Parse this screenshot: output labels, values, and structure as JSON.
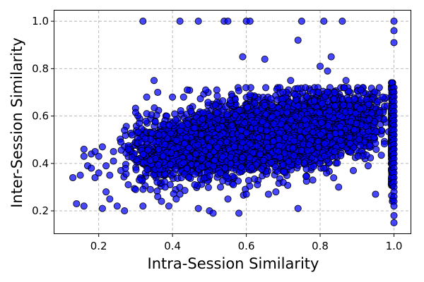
{
  "chart_data": {
    "type": "scatter",
    "xlabel": "Intra-Session Similarity",
    "ylabel": "Inter-Session Similarity",
    "xlim": [
      0.08,
      1.045
    ],
    "ylim": [
      0.105,
      1.045
    ],
    "xticks": [
      0.2,
      0.4,
      0.6,
      0.8,
      1.0
    ],
    "yticks": [
      0.2,
      0.4,
      0.6,
      0.8,
      1.0
    ],
    "xtick_labels": [
      "0.2",
      "0.4",
      "0.6",
      "0.8",
      "1.0"
    ],
    "ytick_labels": [
      "0.2",
      "0.4",
      "0.6",
      "0.8",
      "1.0"
    ],
    "grid": true,
    "marker_color": "#0000ff",
    "marker_edge_color": "#000000",
    "series": [
      {
        "points": [
          [
            0.13,
            0.34
          ],
          [
            0.14,
            0.23
          ],
          [
            0.15,
            0.35
          ],
          [
            0.16,
            0.46
          ],
          [
            0.16,
            0.43
          ],
          [
            0.16,
            0.22
          ],
          [
            0.17,
            0.39
          ],
          [
            0.18,
            0.44
          ],
          [
            0.18,
            0.38
          ],
          [
            0.19,
            0.45
          ],
          [
            0.19,
            0.34
          ],
          [
            0.2,
            0.43
          ],
          [
            0.2,
            0.36
          ],
          [
            0.21,
            0.21
          ],
          [
            0.21,
            0.47
          ],
          [
            0.22,
            0.39
          ],
          [
            0.22,
            0.28
          ],
          [
            0.23,
            0.25
          ],
          [
            0.23,
            0.35
          ],
          [
            0.24,
            0.41
          ],
          [
            0.24,
            0.45
          ],
          [
            0.25,
            0.22
          ],
          [
            0.26,
            0.49
          ],
          [
            0.26,
            0.37
          ],
          [
            0.27,
            0.2
          ],
          [
            0.27,
            0.54
          ],
          [
            0.28,
            0.31
          ],
          [
            0.28,
            0.46
          ],
          [
            0.29,
            0.52
          ],
          [
            0.3,
            0.29
          ],
          [
            0.31,
            0.57
          ],
          [
            0.31,
            0.33
          ],
          [
            0.32,
            0.22
          ],
          [
            0.33,
            0.61
          ],
          [
            0.33,
            0.68
          ],
          [
            0.34,
            0.29
          ],
          [
            0.35,
            0.75
          ],
          [
            0.36,
            0.7
          ],
          [
            0.36,
            0.26
          ],
          [
            0.37,
            0.24
          ],
          [
            0.38,
            0.3
          ],
          [
            0.39,
            0.22
          ],
          [
            0.4,
            0.68
          ],
          [
            0.41,
            0.25
          ],
          [
            0.42,
            0.27
          ],
          [
            0.43,
            0.68
          ],
          [
            0.44,
            0.71
          ],
          [
            0.45,
            0.62
          ],
          [
            0.46,
            0.31
          ],
          [
            0.47,
            0.21
          ],
          [
            0.49,
            0.71
          ],
          [
            0.5,
            0.2
          ],
          [
            0.51,
            0.19
          ],
          [
            0.52,
            0.71
          ],
          [
            0.53,
            0.3
          ],
          [
            0.55,
            0.25
          ],
          [
            0.57,
            0.67
          ],
          [
            0.58,
            0.19
          ],
          [
            0.59,
            0.85
          ],
          [
            0.6,
            0.27
          ],
          [
            0.61,
            0.69
          ],
          [
            0.63,
            0.31
          ],
          [
            0.65,
            0.84
          ],
          [
            0.66,
            0.27
          ],
          [
            0.68,
            0.28
          ],
          [
            0.7,
            0.32
          ],
          [
            0.72,
            0.75
          ],
          [
            0.74,
            0.21
          ],
          [
            0.74,
            0.92
          ],
          [
            0.76,
            0.72
          ],
          [
            0.78,
            0.33
          ],
          [
            0.8,
            0.81
          ],
          [
            0.81,
            0.38
          ],
          [
            0.82,
            0.79
          ],
          [
            0.83,
            0.85
          ],
          [
            0.85,
            0.3
          ],
          [
            0.87,
            0.75
          ],
          [
            0.89,
            0.37
          ],
          [
            0.91,
            0.71
          ],
          [
            0.93,
            0.39
          ],
          [
            0.95,
            0.27
          ],
          [
            0.97,
            0.68
          ],
          [
            0.32,
            1.0
          ],
          [
            0.42,
            1.0
          ],
          [
            0.47,
            1.0
          ],
          [
            0.54,
            1.0
          ],
          [
            0.55,
            1.0
          ],
          [
            0.6,
            1.0
          ],
          [
            0.61,
            1.0
          ],
          [
            0.75,
            1.0
          ],
          [
            0.81,
            1.0
          ],
          [
            0.86,
            1.0
          ],
          [
            1.0,
            1.0
          ],
          [
            1.0,
            0.96
          ],
          [
            1.0,
            0.91
          ],
          [
            1.0,
            0.72
          ],
          [
            1.0,
            0.7
          ],
          [
            1.0,
            0.68
          ],
          [
            1.0,
            0.66
          ],
          [
            1.0,
            0.64
          ],
          [
            1.0,
            0.62
          ],
          [
            1.0,
            0.6
          ],
          [
            1.0,
            0.58
          ],
          [
            1.0,
            0.56
          ],
          [
            1.0,
            0.54
          ],
          [
            1.0,
            0.52
          ],
          [
            1.0,
            0.5
          ],
          [
            1.0,
            0.48
          ],
          [
            1.0,
            0.46
          ],
          [
            1.0,
            0.44
          ],
          [
            1.0,
            0.42
          ],
          [
            1.0,
            0.4
          ],
          [
            1.0,
            0.38
          ],
          [
            1.0,
            0.36
          ],
          [
            1.0,
            0.34
          ],
          [
            1.0,
            0.32
          ],
          [
            1.0,
            0.3
          ],
          [
            1.0,
            0.28
          ],
          [
            1.0,
            0.26
          ],
          [
            1.0,
            0.24
          ],
          [
            1.0,
            0.22
          ],
          [
            1.0,
            0.18
          ],
          [
            1.0,
            0.15
          ]
        ],
        "bulk": {
          "count": 4800,
          "seed": 20240607,
          "x_min": 0.25,
          "x_max": 0.99,
          "x_mode": 0.72,
          "y_center_intercept": 0.375,
          "y_center_slope": 0.22,
          "y_spread": 0.07,
          "y_min": 0.2,
          "y_max": 0.72,
          "column_x": 0.995,
          "column_count": 420,
          "column_y_mean": 0.54,
          "column_y_spread": 0.06
        }
      }
    ]
  }
}
